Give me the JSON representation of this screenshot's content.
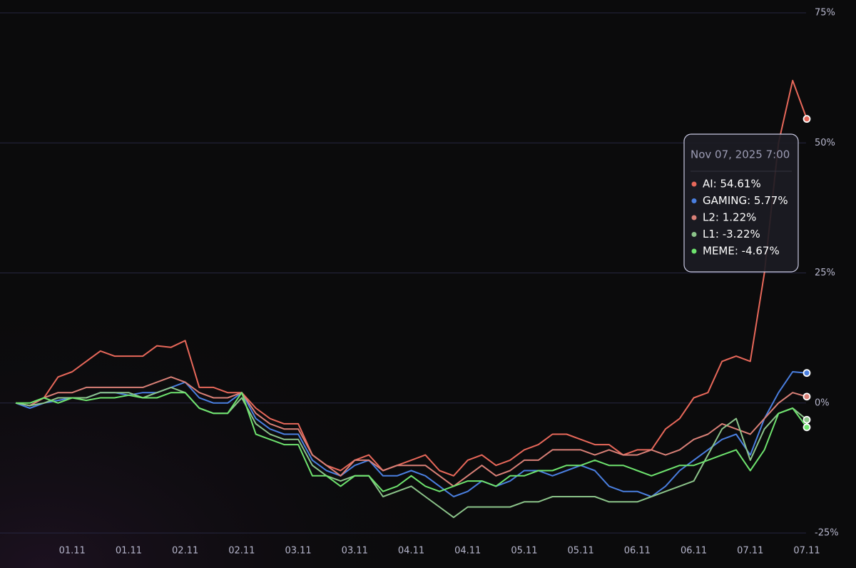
{
  "chart_data": {
    "type": "line",
    "categories": [
      null,
      null,
      null,
      null,
      "01.11",
      null,
      null,
      null,
      "01.11",
      null,
      null,
      null,
      "02.11",
      null,
      null,
      null,
      "02.11",
      null,
      null,
      null,
      "03.11",
      null,
      null,
      null,
      "03.11",
      null,
      null,
      null,
      "04.11",
      null,
      null,
      null,
      "04.11",
      null,
      null,
      null,
      "05.11",
      null,
      null,
      null,
      "05.11",
      null,
      null,
      null,
      "06.11",
      null,
      null,
      null,
      "06.11",
      null,
      null,
      null,
      "07.11",
      null,
      null,
      null,
      "07.11"
    ],
    "series": [
      {
        "name": "AI",
        "color": "#e8685a",
        "values": [
          0,
          -0.5,
          1,
          5,
          6,
          8,
          10,
          9,
          9,
          9,
          11,
          10.7,
          12,
          3,
          3,
          2,
          2,
          -1,
          -3,
          -4,
          -4,
          -10,
          -12,
          -13,
          -11,
          -10,
          -13,
          -12,
          -11,
          -10,
          -13,
          -14,
          -11,
          -10,
          -12,
          -11,
          -9,
          -8,
          -6,
          -6,
          -7,
          -8,
          -8,
          -10,
          -9,
          -9,
          -5,
          -3,
          1,
          2,
          8,
          9,
          8,
          25,
          50,
          62,
          54.61
        ]
      },
      {
        "name": "GAMING",
        "color": "#4a7fe0",
        "values": [
          0,
          -1,
          0,
          0.5,
          1,
          1,
          2,
          2,
          1.5,
          2,
          2,
          3,
          4,
          1,
          0,
          0,
          2,
          -3,
          -5,
          -6,
          -6,
          -11,
          -13,
          -14,
          -12,
          -11,
          -14,
          -14,
          -13,
          -14,
          -16,
          -18,
          -17,
          -15,
          -16,
          -15,
          -13,
          -13,
          -14,
          -13,
          -12,
          -13,
          -16,
          -17,
          -17,
          -18,
          -16,
          -13,
          -11,
          -9,
          -7,
          -6,
          -10,
          -3,
          2,
          6,
          5.77
        ]
      },
      {
        "name": "L2",
        "color": "#d98077",
        "values": [
          0,
          -0.5,
          1,
          2,
          2,
          3,
          3,
          3,
          3,
          3,
          4,
          5,
          4,
          2,
          1,
          1,
          2,
          -2,
          -4,
          -5,
          -5,
          -10,
          -12,
          -14,
          -11,
          -11,
          -13,
          -12,
          -12,
          -12,
          -14,
          -16,
          -14,
          -12,
          -14,
          -13,
          -11,
          -11,
          -9,
          -9,
          -9,
          -10,
          -9,
          -10,
          -10,
          -9,
          -10,
          -9,
          -7,
          -6,
          -4,
          -5,
          -6,
          -3,
          0,
          2,
          1.22
        ]
      },
      {
        "name": "L1",
        "color": "#8cc48a",
        "values": [
          0,
          -0.5,
          0,
          1,
          1,
          1,
          2,
          2,
          2,
          1,
          2,
          3,
          2,
          -1,
          -2,
          -2,
          1,
          -4,
          -6,
          -7,
          -7,
          -12,
          -14,
          -15,
          -14,
          -14,
          -18,
          -17,
          -16,
          -18,
          -20,
          -22,
          -20,
          -20,
          -20,
          -20,
          -19,
          -19,
          -18,
          -18,
          -18,
          -18,
          -19,
          -19,
          -19,
          -18,
          -17,
          -16,
          -15,
          -10,
          -5,
          -3,
          -11,
          -5,
          -2,
          -1,
          -3.22
        ]
      },
      {
        "name": "MEME",
        "color": "#6ee36e",
        "values": [
          0,
          0,
          1,
          0,
          1,
          0.5,
          1,
          1,
          1.5,
          1,
          1,
          2,
          2,
          -1,
          -2,
          -2,
          2,
          -6,
          -7,
          -8,
          -8,
          -14,
          -14,
          -16,
          -14,
          -14,
          -17,
          -16,
          -14,
          -16,
          -17,
          -16,
          -15,
          -15,
          -16,
          -14,
          -14,
          -13,
          -13,
          -12,
          -12,
          -11,
          -12,
          -12,
          -13,
          -14,
          -13,
          -12,
          -12,
          -11,
          -10,
          -9,
          -13,
          -9,
          -2,
          -1,
          -4.67
        ]
      }
    ],
    "ylim": [
      -25,
      75
    ],
    "yticks": [
      {
        "value": 75,
        "label": "75%"
      },
      {
        "value": 50,
        "label": "50%"
      },
      {
        "value": 25,
        "label": "25%"
      },
      {
        "value": 0,
        "label": "0%"
      },
      {
        "value": -25,
        "label": "-25%"
      }
    ],
    "grid": true,
    "tooltip": {
      "title": "Nov 07, 2025 7:00",
      "items": [
        "AI: 54.61%",
        "GAMING: 5.77%",
        "L2: 1.22%",
        "L1: -3.22%",
        "MEME: -4.67%"
      ]
    }
  }
}
